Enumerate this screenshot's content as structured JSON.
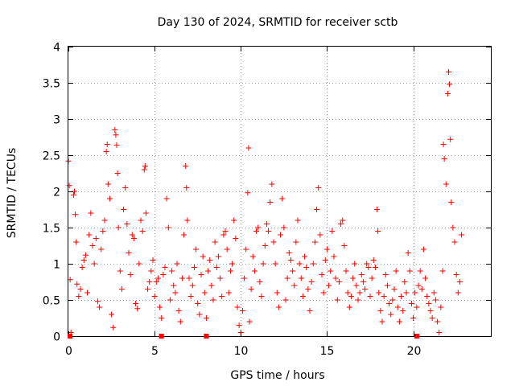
{
  "chart_data": {
    "type": "scatter",
    "title": "Day 130 of 2024, SRMTID for receiver sctb",
    "xlabel": "GPS time / hours",
    "ylabel": "SRMTID / TECUs",
    "xlim": [
      0,
      24.5
    ],
    "ylim": [
      0,
      4
    ],
    "xticks": [
      0,
      5,
      10,
      15,
      20
    ],
    "xtick_labels": [
      "0",
      "5",
      "10",
      "15",
      "20"
    ],
    "yticks": [
      0,
      0.5,
      1,
      1.5,
      2,
      2.5,
      3,
      3.5,
      4
    ],
    "ytick_labels": [
      "0",
      "0.5",
      "1",
      "1.5",
      "2",
      "2.5",
      "3",
      "3.5",
      "4"
    ],
    "grid": true,
    "marker": "plus",
    "series_color": "#ff0000",
    "data_gap_markers_x": [
      0.1,
      5.4,
      8.0,
      20.2
    ],
    "series": [
      {
        "name": "SRMTID",
        "points": [
          [
            0.0,
            2.42
          ],
          [
            0.05,
            2.08
          ],
          [
            0.1,
            0.78
          ],
          [
            0.15,
            0.05
          ],
          [
            0.3,
            1.95
          ],
          [
            0.35,
            2.0
          ],
          [
            0.4,
            1.68
          ],
          [
            0.45,
            1.3
          ],
          [
            0.5,
            0.72
          ],
          [
            0.6,
            0.55
          ],
          [
            0.7,
            0.65
          ],
          [
            0.8,
            0.95
          ],
          [
            0.9,
            1.05
          ],
          [
            1.0,
            1.12
          ],
          [
            1.1,
            0.6
          ],
          [
            1.2,
            1.4
          ],
          [
            1.3,
            1.7
          ],
          [
            1.4,
            1.25
          ],
          [
            1.5,
            1.0
          ],
          [
            1.6,
            1.35
          ],
          [
            1.7,
            0.48
          ],
          [
            1.8,
            0.4
          ],
          [
            1.9,
            1.2
          ],
          [
            2.0,
            1.45
          ],
          [
            2.1,
            1.6
          ],
          [
            2.2,
            2.55
          ],
          [
            2.25,
            2.65
          ],
          [
            2.3,
            2.1
          ],
          [
            2.4,
            1.9
          ],
          [
            2.5,
            0.3
          ],
          [
            2.6,
            0.12
          ],
          [
            2.7,
            2.85
          ],
          [
            2.75,
            2.78
          ],
          [
            2.8,
            2.64
          ],
          [
            2.85,
            2.25
          ],
          [
            2.9,
            1.5
          ],
          [
            3.0,
            0.9
          ],
          [
            3.1,
            0.65
          ],
          [
            3.2,
            1.75
          ],
          [
            3.3,
            2.05
          ],
          [
            3.4,
            1.55
          ],
          [
            3.5,
            1.15
          ],
          [
            3.6,
            0.85
          ],
          [
            3.7,
            1.4
          ],
          [
            3.8,
            1.35
          ],
          [
            3.9,
            0.45
          ],
          [
            4.0,
            0.38
          ],
          [
            4.1,
            1.0
          ],
          [
            4.2,
            1.6
          ],
          [
            4.3,
            1.45
          ],
          [
            4.4,
            2.3
          ],
          [
            4.45,
            2.35
          ],
          [
            4.5,
            1.7
          ],
          [
            4.6,
            0.65
          ],
          [
            4.7,
            0.75
          ],
          [
            4.8,
            0.9
          ],
          [
            4.9,
            1.05
          ],
          [
            5.0,
            0.55
          ],
          [
            5.1,
            0.75
          ],
          [
            5.2,
            0.8
          ],
          [
            5.3,
            0.4
          ],
          [
            5.4,
            0.25
          ],
          [
            5.5,
            0.85
          ],
          [
            5.6,
            0.95
          ],
          [
            5.7,
            1.9
          ],
          [
            5.8,
            1.5
          ],
          [
            5.9,
            0.5
          ],
          [
            6.0,
            0.9
          ],
          [
            6.1,
            0.7
          ],
          [
            6.2,
            0.6
          ],
          [
            6.3,
            1.0
          ],
          [
            6.4,
            0.35
          ],
          [
            6.5,
            0.2
          ],
          [
            6.6,
            0.8
          ],
          [
            6.7,
            1.4
          ],
          [
            6.8,
            2.35
          ],
          [
            6.85,
            2.05
          ],
          [
            6.9,
            1.6
          ],
          [
            7.0,
            0.8
          ],
          [
            7.1,
            0.55
          ],
          [
            7.2,
            0.7
          ],
          [
            7.3,
            0.95
          ],
          [
            7.4,
            1.2
          ],
          [
            7.5,
            0.45
          ],
          [
            7.6,
            0.3
          ],
          [
            7.7,
            0.85
          ],
          [
            7.8,
            1.1
          ],
          [
            7.9,
            0.6
          ],
          [
            8.0,
            0.25
          ],
          [
            8.1,
            0.9
          ],
          [
            8.2,
            1.05
          ],
          [
            8.3,
            0.7
          ],
          [
            8.4,
            0.5
          ],
          [
            8.5,
            1.3
          ],
          [
            8.6,
            0.95
          ],
          [
            8.7,
            1.1
          ],
          [
            8.8,
            0.8
          ],
          [
            8.9,
            0.55
          ],
          [
            9.0,
            1.4
          ],
          [
            9.1,
            1.45
          ],
          [
            9.2,
            1.2
          ],
          [
            9.3,
            0.6
          ],
          [
            9.4,
            0.9
          ],
          [
            9.5,
            1.0
          ],
          [
            9.6,
            1.6
          ],
          [
            9.7,
            1.35
          ],
          [
            9.8,
            0.4
          ],
          [
            9.9,
            0.15
          ],
          [
            10.0,
            0.05
          ],
          [
            10.1,
            0.35
          ],
          [
            10.2,
            0.8
          ],
          [
            10.3,
            1.2
          ],
          [
            10.4,
            1.98
          ],
          [
            10.45,
            2.6
          ],
          [
            10.5,
            0.2
          ],
          [
            10.6,
            0.65
          ],
          [
            10.7,
            1.1
          ],
          [
            10.8,
            0.9
          ],
          [
            10.9,
            1.45
          ],
          [
            11.0,
            1.5
          ],
          [
            11.1,
            0.75
          ],
          [
            11.2,
            0.55
          ],
          [
            11.3,
            1.0
          ],
          [
            11.4,
            1.25
          ],
          [
            11.5,
            1.55
          ],
          [
            11.6,
            1.45
          ],
          [
            11.7,
            1.85
          ],
          [
            11.8,
            2.1
          ],
          [
            11.9,
            1.3
          ],
          [
            12.0,
            1.0
          ],
          [
            12.1,
            0.6
          ],
          [
            12.2,
            0.4
          ],
          [
            12.3,
            1.4
          ],
          [
            12.4,
            1.9
          ],
          [
            12.5,
            1.5
          ],
          [
            12.6,
            0.5
          ],
          [
            12.7,
            0.8
          ],
          [
            12.8,
            1.15
          ],
          [
            12.9,
            1.05
          ],
          [
            13.0,
            0.9
          ],
          [
            13.1,
            0.7
          ],
          [
            13.2,
            1.3
          ],
          [
            13.3,
            1.6
          ],
          [
            13.4,
            1.0
          ],
          [
            13.5,
            0.8
          ],
          [
            13.6,
            0.55
          ],
          [
            13.7,
            1.1
          ],
          [
            13.8,
            0.95
          ],
          [
            13.9,
            0.65
          ],
          [
            14.0,
            0.35
          ],
          [
            14.1,
            0.75
          ],
          [
            14.2,
            1.0
          ],
          [
            14.3,
            1.3
          ],
          [
            14.4,
            1.75
          ],
          [
            14.5,
            2.05
          ],
          [
            14.6,
            1.4
          ],
          [
            14.7,
            0.85
          ],
          [
            14.8,
            0.6
          ],
          [
            14.9,
            1.05
          ],
          [
            15.0,
            1.2
          ],
          [
            15.1,
            0.7
          ],
          [
            15.2,
            0.9
          ],
          [
            15.3,
            1.45
          ],
          [
            15.4,
            1.1
          ],
          [
            15.5,
            0.8
          ],
          [
            15.6,
            0.5
          ],
          [
            15.7,
            0.75
          ],
          [
            15.8,
            1.55
          ],
          [
            15.9,
            1.6
          ],
          [
            16.0,
            1.25
          ],
          [
            16.1,
            0.9
          ],
          [
            16.2,
            0.6
          ],
          [
            16.3,
            0.4
          ],
          [
            16.4,
            0.55
          ],
          [
            16.5,
            0.8
          ],
          [
            16.6,
            1.0
          ],
          [
            16.7,
            0.7
          ],
          [
            16.8,
            0.5
          ],
          [
            16.9,
            0.6
          ],
          [
            17.0,
            0.85
          ],
          [
            17.1,
            0.75
          ],
          [
            17.2,
            0.65
          ],
          [
            17.3,
            1.0
          ],
          [
            17.4,
            0.95
          ],
          [
            17.5,
            0.55
          ],
          [
            17.6,
            0.8
          ],
          [
            17.7,
            1.05
          ],
          [
            17.8,
            0.95
          ],
          [
            17.9,
            1.75
          ],
          [
            17.95,
            1.45
          ],
          [
            18.0,
            0.6
          ],
          [
            18.1,
            0.35
          ],
          [
            18.2,
            0.2
          ],
          [
            18.3,
            0.55
          ],
          [
            18.4,
            0.85
          ],
          [
            18.5,
            0.7
          ],
          [
            18.6,
            0.45
          ],
          [
            18.7,
            0.3
          ],
          [
            18.8,
            0.5
          ],
          [
            18.9,
            0.65
          ],
          [
            19.0,
            0.9
          ],
          [
            19.1,
            0.4
          ],
          [
            19.2,
            0.2
          ],
          [
            19.3,
            0.55
          ],
          [
            19.4,
            0.35
          ],
          [
            19.5,
            0.75
          ],
          [
            19.6,
            0.6
          ],
          [
            19.7,
            1.15
          ],
          [
            19.8,
            0.9
          ],
          [
            19.9,
            0.45
          ],
          [
            20.0,
            0.25
          ],
          [
            20.1,
            0.6
          ],
          [
            20.2,
            0.4
          ],
          [
            20.3,
            0.7
          ],
          [
            20.4,
            0.9
          ],
          [
            20.5,
            0.65
          ],
          [
            20.6,
            1.2
          ],
          [
            20.7,
            0.8
          ],
          [
            20.8,
            0.55
          ],
          [
            20.9,
            0.45
          ],
          [
            21.0,
            0.35
          ],
          [
            21.1,
            0.25
          ],
          [
            21.2,
            0.6
          ],
          [
            21.3,
            0.5
          ],
          [
            21.4,
            0.2
          ],
          [
            21.5,
            0.05
          ],
          [
            21.6,
            0.4
          ],
          [
            21.7,
            0.9
          ],
          [
            21.75,
            2.65
          ],
          [
            21.8,
            2.45
          ],
          [
            21.9,
            2.1
          ],
          [
            22.0,
            3.35
          ],
          [
            22.05,
            3.65
          ],
          [
            22.1,
            3.48
          ],
          [
            22.15,
            2.72
          ],
          [
            22.2,
            1.85
          ],
          [
            22.3,
            1.5
          ],
          [
            22.4,
            1.3
          ],
          [
            22.5,
            0.85
          ],
          [
            22.6,
            0.6
          ],
          [
            22.7,
            0.75
          ],
          [
            22.8,
            1.4
          ]
        ]
      }
    ]
  }
}
